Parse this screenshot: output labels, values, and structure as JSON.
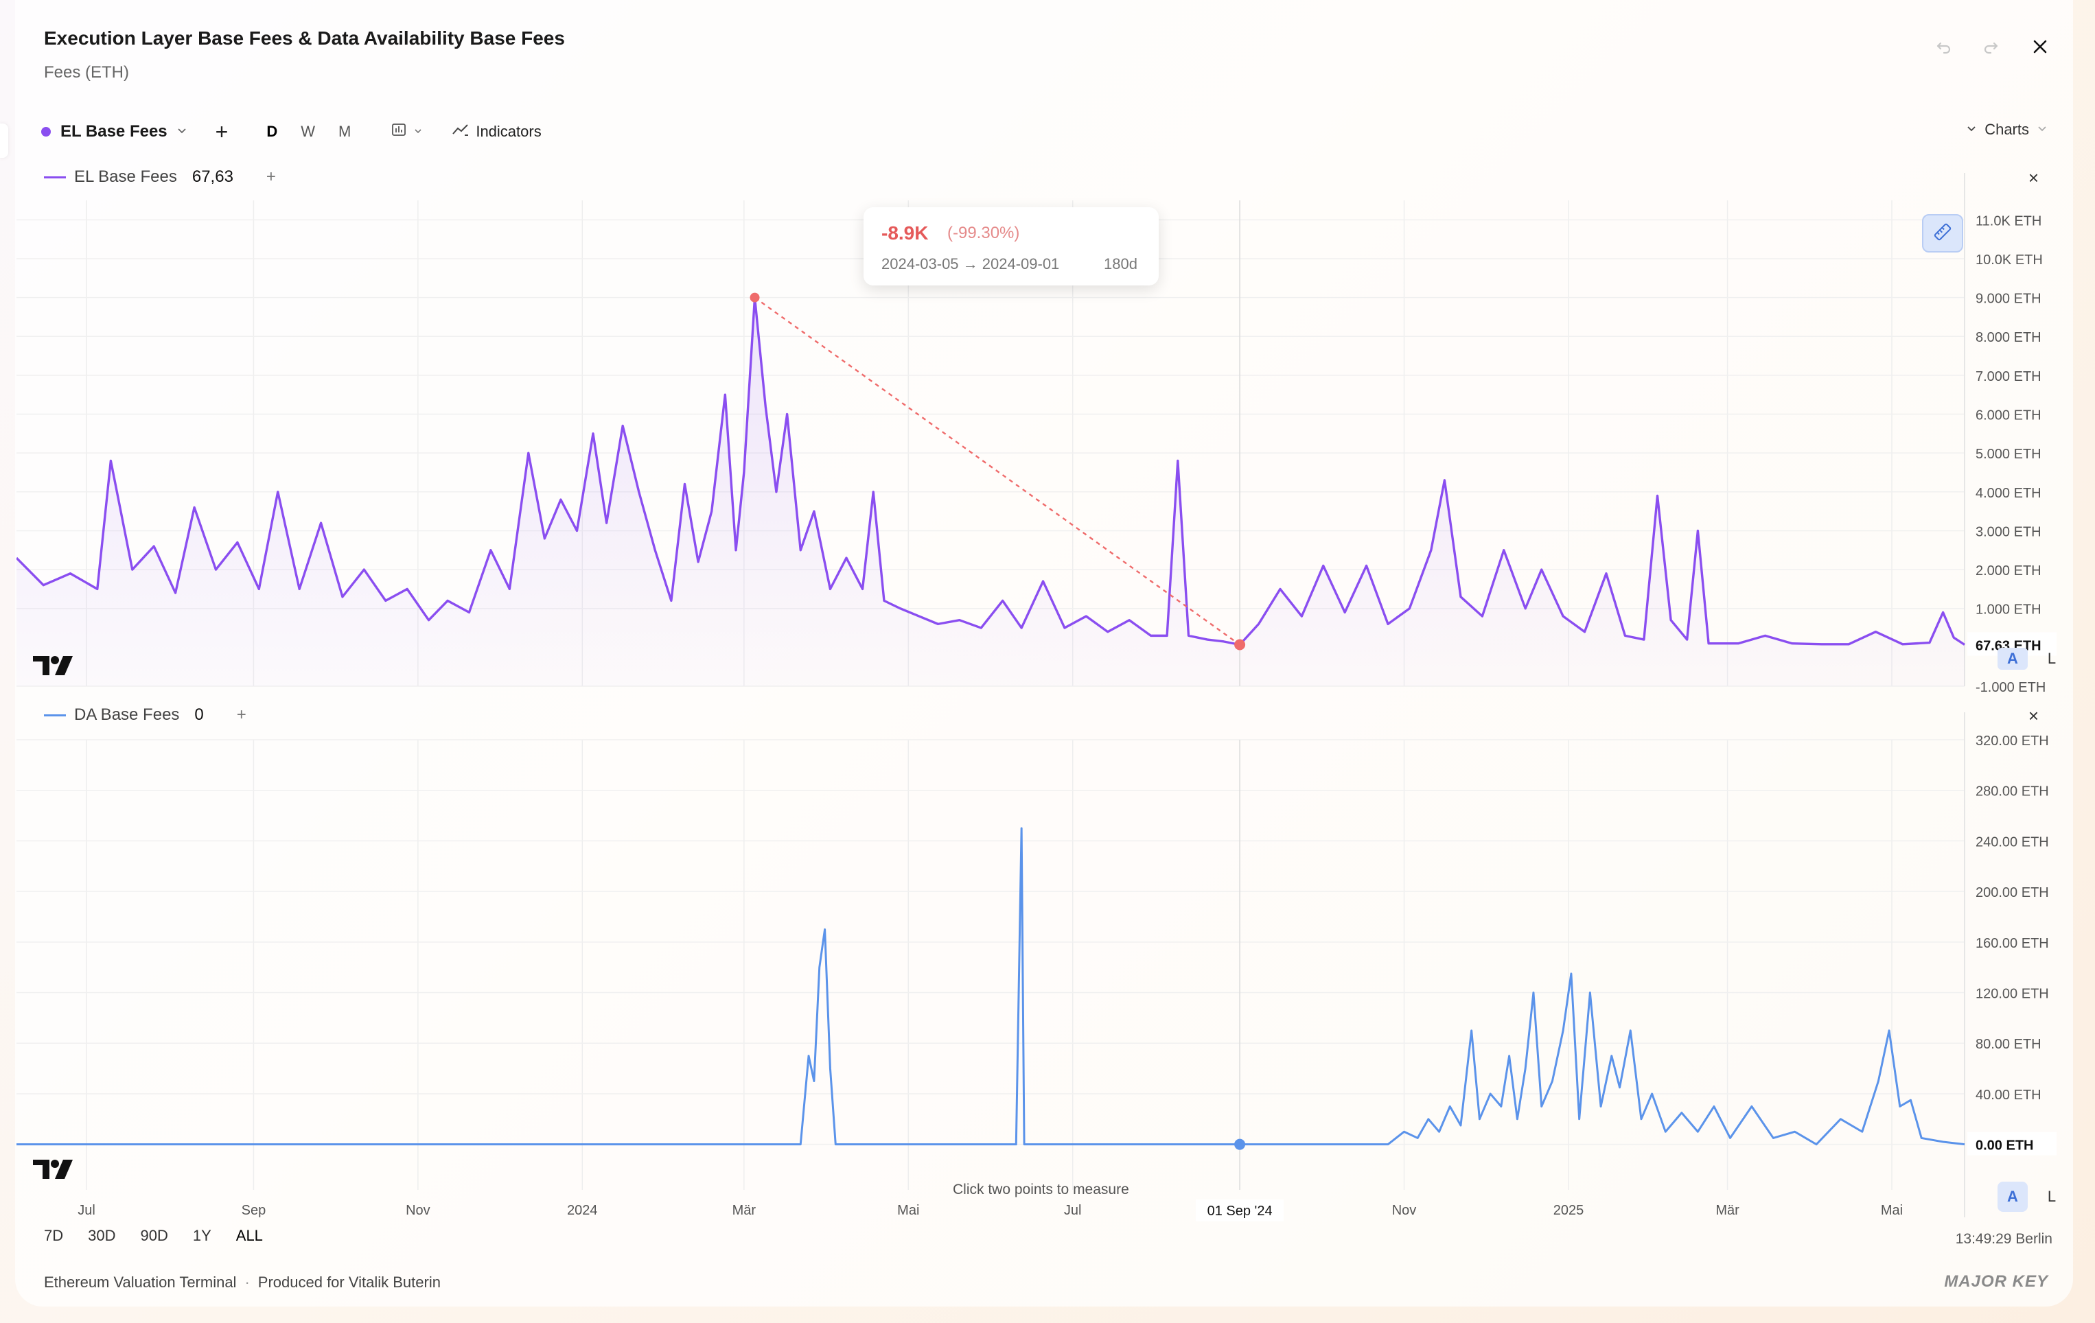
{
  "header": {
    "title": "Execution Layer Base Fees & Data Availability Base Fees",
    "subtitle": "Fees (ETH)"
  },
  "toolbar": {
    "series_label": "EL Base Fees",
    "add": "+",
    "intervals": [
      "D",
      "W",
      "M"
    ],
    "indicators_label": "Indicators",
    "charts_label": "Charts"
  },
  "pane1": {
    "legend_name": "EL Base Fees",
    "legend_value": "67,63",
    "plus": "+",
    "close": "×",
    "last_label": "67.63 ETH",
    "color": "#8a4ef0"
  },
  "pane2": {
    "legend_name": "DA Base Fees",
    "legend_value": "0",
    "plus": "+",
    "close": "×",
    "last_label": "0.00 ETH",
    "color": "#5b93ea"
  },
  "measure": {
    "change": "-8.9K",
    "percent": "(-99.30%)",
    "range": "2024-03-05 → 2024-09-01",
    "days": "180d",
    "hint": "Click two points to measure"
  },
  "crosshair_label": "01 Sep '24",
  "scale": {
    "auto": "A",
    "log": "L"
  },
  "range_buttons": [
    "7D",
    "30D",
    "90D",
    "1Y",
    "ALL"
  ],
  "range_active": "ALL",
  "clock": "13:49:29 Berlin",
  "footer": {
    "left": "Ethereum Valuation Terminal",
    "sep": "·",
    "right": "Produced for Vitalik Buterin",
    "brand": "MAJOR KEY"
  },
  "chart_data": [
    {
      "type": "line",
      "name": "EL Base Fees",
      "unit": "ETH",
      "x_ticks": [
        "Jul",
        "Sep",
        "Nov",
        "2024",
        "Mär",
        "Mai",
        "Jul",
        "Sep",
        "Nov",
        "2025",
        "Mär",
        "Mai"
      ],
      "y_ticks": [
        "11.0K ETH",
        "10.0K ETH",
        "9.000 ETH",
        "8.000 ETH",
        "7.000 ETH",
        "6.000 ETH",
        "5.000 ETH",
        "4.000 ETH",
        "3.000 ETH",
        "2.000 ETH",
        "1.000 ETH",
        "-1.000 ETH"
      ],
      "ylim": [
        -1000,
        11500
      ],
      "series": [
        {
          "name": "EL Base Fees",
          "color": "#8a4ef0"
        }
      ],
      "points": [
        [
          "2023-06-05",
          2300
        ],
        [
          "2023-06-15",
          1600
        ],
        [
          "2023-06-25",
          1900
        ],
        [
          "2023-07-05",
          1500
        ],
        [
          "2023-07-10",
          4800
        ],
        [
          "2023-07-18",
          2000
        ],
        [
          "2023-07-26",
          2600
        ],
        [
          "2023-08-03",
          1400
        ],
        [
          "2023-08-10",
          3600
        ],
        [
          "2023-08-18",
          2000
        ],
        [
          "2023-08-26",
          2700
        ],
        [
          "2023-09-03",
          1500
        ],
        [
          "2023-09-10",
          4000
        ],
        [
          "2023-09-18",
          1500
        ],
        [
          "2023-09-26",
          3200
        ],
        [
          "2023-10-04",
          1300
        ],
        [
          "2023-10-12",
          2000
        ],
        [
          "2023-10-20",
          1200
        ],
        [
          "2023-10-28",
          1500
        ],
        [
          "2023-11-05",
          700
        ],
        [
          "2023-11-12",
          1200
        ],
        [
          "2023-11-20",
          900
        ],
        [
          "2023-11-28",
          2500
        ],
        [
          "2023-12-05",
          1500
        ],
        [
          "2023-12-12",
          5000
        ],
        [
          "2023-12-18",
          2800
        ],
        [
          "2023-12-24",
          3800
        ],
        [
          "2023-12-30",
          3000
        ],
        [
          "2024-01-05",
          5500
        ],
        [
          "2024-01-10",
          3200
        ],
        [
          "2024-01-16",
          5700
        ],
        [
          "2024-01-22",
          4000
        ],
        [
          "2024-01-28",
          2500
        ],
        [
          "2024-02-03",
          1200
        ],
        [
          "2024-02-08",
          4200
        ],
        [
          "2024-02-13",
          2200
        ],
        [
          "2024-02-18",
          3500
        ],
        [
          "2024-02-23",
          6500
        ],
        [
          "2024-02-27",
          2500
        ],
        [
          "2024-03-01",
          4500
        ],
        [
          "2024-03-05",
          9000
        ],
        [
          "2024-03-09",
          6200
        ],
        [
          "2024-03-13",
          4000
        ],
        [
          "2024-03-17",
          6000
        ],
        [
          "2024-03-22",
          2500
        ],
        [
          "2024-03-27",
          3500
        ],
        [
          "2024-04-02",
          1500
        ],
        [
          "2024-04-08",
          2300
        ],
        [
          "2024-04-14",
          1500
        ],
        [
          "2024-04-18",
          4000
        ],
        [
          "2024-04-22",
          1200
        ],
        [
          "2024-04-28",
          1000
        ],
        [
          "2024-05-05",
          800
        ],
        [
          "2024-05-12",
          600
        ],
        [
          "2024-05-20",
          700
        ],
        [
          "2024-05-28",
          500
        ],
        [
          "2024-06-05",
          1200
        ],
        [
          "2024-06-12",
          500
        ],
        [
          "2024-06-20",
          1700
        ],
        [
          "2024-06-28",
          500
        ],
        [
          "2024-07-06",
          800
        ],
        [
          "2024-07-14",
          400
        ],
        [
          "2024-07-22",
          700
        ],
        [
          "2024-07-30",
          300
        ],
        [
          "2024-08-05",
          300
        ],
        [
          "2024-08-09",
          4800
        ],
        [
          "2024-08-13",
          300
        ],
        [
          "2024-08-20",
          200
        ],
        [
          "2024-08-26",
          150
        ],
        [
          "2024-09-01",
          68
        ],
        [
          "2024-09-08",
          600
        ],
        [
          "2024-09-16",
          1500
        ],
        [
          "2024-09-24",
          800
        ],
        [
          "2024-10-02",
          2100
        ],
        [
          "2024-10-10",
          900
        ],
        [
          "2024-10-18",
          2100
        ],
        [
          "2024-10-26",
          600
        ],
        [
          "2024-11-03",
          1000
        ],
        [
          "2024-11-11",
          2500
        ],
        [
          "2024-11-16",
          4300
        ],
        [
          "2024-11-22",
          1300
        ],
        [
          "2024-11-30",
          800
        ],
        [
          "2024-12-08",
          2500
        ],
        [
          "2024-12-16",
          1000
        ],
        [
          "2024-12-22",
          2000
        ],
        [
          "2024-12-30",
          800
        ],
        [
          "2025-01-07",
          400
        ],
        [
          "2025-01-15",
          1900
        ],
        [
          "2025-01-22",
          300
        ],
        [
          "2025-01-29",
          200
        ],
        [
          "2025-02-03",
          3900
        ],
        [
          "2025-02-08",
          700
        ],
        [
          "2025-02-14",
          200
        ],
        [
          "2025-02-18",
          3000
        ],
        [
          "2025-02-22",
          100
        ],
        [
          "2025-03-05",
          100
        ],
        [
          "2025-03-15",
          300
        ],
        [
          "2025-03-25",
          100
        ],
        [
          "2025-04-05",
          80
        ],
        [
          "2025-04-15",
          80
        ],
        [
          "2025-04-25",
          400
        ],
        [
          "2025-05-05",
          80
        ],
        [
          "2025-05-15",
          120
        ],
        [
          "2025-05-20",
          900
        ],
        [
          "2025-05-24",
          250
        ],
        [
          "2025-05-28",
          68
        ]
      ],
      "measure": {
        "from": [
          "2024-03-05",
          9000
        ],
        "to": [
          "2024-09-01",
          68
        ]
      }
    },
    {
      "type": "line",
      "name": "DA Base Fees",
      "unit": "ETH",
      "x_ticks": [
        "Jul",
        "Sep",
        "Nov",
        "2024",
        "Mär",
        "Mai",
        "Jul",
        "Sep",
        "Nov",
        "2025",
        "Mär",
        "Mai"
      ],
      "y_ticks": [
        "320.00 ETH",
        "280.00 ETH",
        "240.00 ETH",
        "200.00 ETH",
        "160.00 ETH",
        "120.00 ETH",
        "80.00 ETH",
        "40.00 ETH",
        "0.00 ETH"
      ],
      "ylim": [
        -36,
        320
      ],
      "series": [
        {
          "name": "DA Base Fees",
          "color": "#5b93ea"
        }
      ],
      "points": [
        [
          "2023-06-05",
          0
        ],
        [
          "2024-03-22",
          0
        ],
        [
          "2024-03-25",
          70
        ],
        [
          "2024-03-27",
          50
        ],
        [
          "2024-03-29",
          140
        ],
        [
          "2024-03-31",
          170
        ],
        [
          "2024-04-02",
          60
        ],
        [
          "2024-04-04",
          0
        ],
        [
          "2024-06-10",
          0
        ],
        [
          "2024-06-12",
          250
        ],
        [
          "2024-06-13",
          0
        ],
        [
          "2024-10-26",
          0
        ],
        [
          "2024-11-01",
          10
        ],
        [
          "2024-11-06",
          5
        ],
        [
          "2024-11-10",
          20
        ],
        [
          "2024-11-14",
          10
        ],
        [
          "2024-11-18",
          30
        ],
        [
          "2024-11-22",
          15
        ],
        [
          "2024-11-26",
          90
        ],
        [
          "2024-11-29",
          20
        ],
        [
          "2024-12-03",
          40
        ],
        [
          "2024-12-07",
          30
        ],
        [
          "2024-12-10",
          70
        ],
        [
          "2024-12-13",
          20
        ],
        [
          "2024-12-16",
          60
        ],
        [
          "2024-12-19",
          120
        ],
        [
          "2024-12-22",
          30
        ],
        [
          "2024-12-26",
          50
        ],
        [
          "2024-12-30",
          90
        ],
        [
          "2025-01-02",
          135
        ],
        [
          "2025-01-05",
          20
        ],
        [
          "2025-01-09",
          120
        ],
        [
          "2025-01-13",
          30
        ],
        [
          "2025-01-17",
          70
        ],
        [
          "2025-01-20",
          45
        ],
        [
          "2025-01-24",
          90
        ],
        [
          "2025-01-28",
          20
        ],
        [
          "2025-02-01",
          40
        ],
        [
          "2025-02-06",
          10
        ],
        [
          "2025-02-12",
          25
        ],
        [
          "2025-02-18",
          10
        ],
        [
          "2025-02-24",
          30
        ],
        [
          "2025-03-02",
          5
        ],
        [
          "2025-03-10",
          30
        ],
        [
          "2025-03-18",
          5
        ],
        [
          "2025-03-26",
          10
        ],
        [
          "2025-04-03",
          0
        ],
        [
          "2025-04-12",
          20
        ],
        [
          "2025-04-20",
          10
        ],
        [
          "2025-04-26",
          50
        ],
        [
          "2025-04-30",
          90
        ],
        [
          "2025-05-04",
          30
        ],
        [
          "2025-05-08",
          35
        ],
        [
          "2025-05-12",
          5
        ],
        [
          "2025-05-20",
          2
        ],
        [
          "2025-05-28",
          0
        ]
      ]
    }
  ]
}
